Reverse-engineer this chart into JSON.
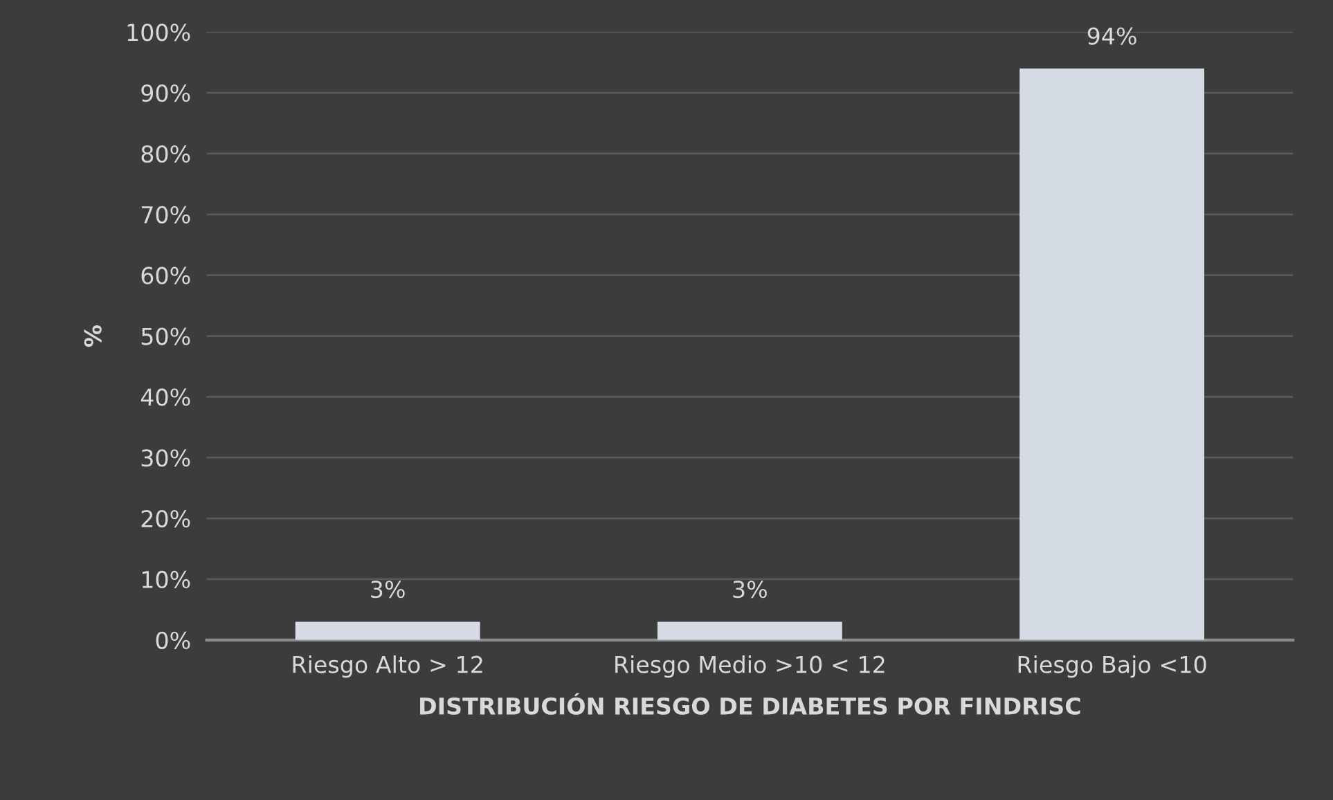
{
  "chart_data": {
    "type": "bar",
    "categories": [
      "Riesgo Alto > 12",
      "Riesgo Medio >10 < 12",
      "Riesgo Bajo <10"
    ],
    "values": [
      3,
      3,
      94
    ],
    "value_labels": [
      "3%",
      "3%",
      "94%"
    ],
    "color": "#d6dce5",
    "xlabel": "DISTRIBUCIÓN RIESGO DE DIABETES POR FINDRISC",
    "ylabel": "%",
    "ylim": [
      0,
      100
    ],
    "yticks": [
      {
        "value": 0,
        "label": "0%"
      },
      {
        "value": 10,
        "label": "10%"
      },
      {
        "value": 20,
        "label": "20%"
      },
      {
        "value": 30,
        "label": "30%"
      },
      {
        "value": 40,
        "label": "40%"
      },
      {
        "value": 50,
        "label": "50%"
      },
      {
        "value": 60,
        "label": "60%"
      },
      {
        "value": 70,
        "label": "70%"
      },
      {
        "value": 80,
        "label": "80%"
      },
      {
        "value": 90,
        "label": "90%"
      },
      {
        "value": 100,
        "label": "100%"
      }
    ],
    "grid": "y",
    "legend": false
  }
}
